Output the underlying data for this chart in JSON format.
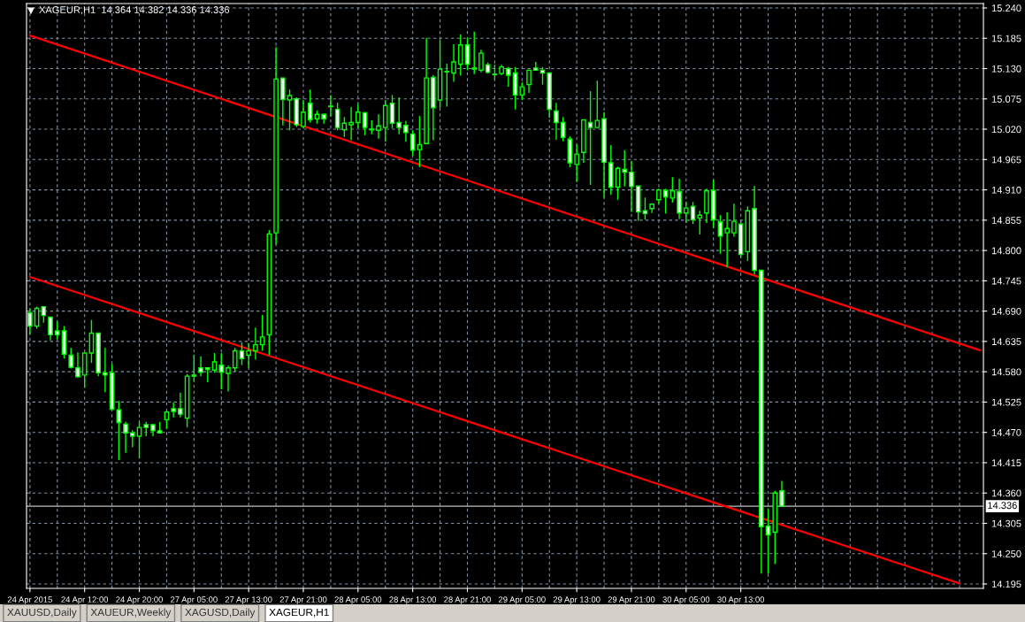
{
  "chart_data": {
    "type": "candlestick",
    "title": "XAGEUR,H1  14.364 14.382 14.336 14.336",
    "categories": [
      "24 Apr 2015",
      null,
      null,
      null,
      null,
      null,
      null,
      null,
      "24 Apr 12:00",
      null,
      null,
      null,
      null,
      null,
      null,
      null,
      "24 Apr 20:00",
      null,
      null,
      null,
      null,
      null,
      null,
      null,
      "27 Apr 05:00",
      null,
      null,
      null,
      null,
      null,
      null,
      null,
      "27 Apr 13:00",
      null,
      null,
      null,
      null,
      null,
      null,
      null,
      "27 Apr 21:00",
      null,
      null,
      null,
      null,
      null,
      null,
      null,
      "28 Apr 05:00",
      null,
      null,
      null,
      null,
      null,
      null,
      null,
      "28 Apr 13:00",
      null,
      null,
      null,
      null,
      null,
      null,
      null,
      "28 Apr 21:00",
      null,
      null,
      null,
      null,
      null,
      null,
      null,
      "29 Apr 05:00",
      null,
      null,
      null,
      null,
      null,
      null,
      null,
      "29 Apr 13:00",
      null,
      null,
      null,
      null,
      null,
      null,
      null,
      "29 Apr 21:00",
      null,
      null,
      null,
      null,
      null,
      null,
      null,
      "30 Apr 05:00",
      null,
      null,
      null,
      null,
      null,
      null,
      null,
      "30 Apr 13:00",
      null,
      null,
      null,
      null,
      null,
      null,
      null,
      null,
      null,
      null,
      null,
      null,
      null,
      null,
      null,
      null,
      null,
      null,
      null,
      null,
      null,
      null,
      null,
      null,
      null,
      null,
      null,
      null,
      null,
      null,
      null,
      null,
      null,
      null,
      null
    ],
    "ohlc": [
      [
        14.687,
        14.695,
        14.647,
        14.663
      ],
      [
        14.663,
        14.698,
        14.658,
        14.695
      ],
      [
        14.698,
        14.699,
        14.669,
        14.682
      ],
      [
        14.679,
        14.68,
        14.637,
        14.647
      ],
      [
        14.654,
        14.671,
        14.639,
        14.647
      ],
      [
        14.654,
        14.663,
        14.604,
        14.612
      ],
      [
        14.61,
        14.623,
        14.586,
        14.588
      ],
      [
        14.587,
        14.615,
        14.569,
        14.571
      ],
      [
        14.574,
        14.614,
        14.551,
        14.614
      ],
      [
        14.614,
        14.674,
        14.596,
        14.65
      ],
      [
        14.65,
        14.65,
        14.572,
        14.578
      ],
      [
        14.578,
        14.623,
        14.543,
        14.574
      ],
      [
        14.578,
        14.594,
        14.512,
        14.512
      ],
      [
        14.511,
        14.527,
        14.42,
        14.488
      ],
      [
        14.485,
        14.489,
        14.433,
        14.469
      ],
      [
        14.469,
        14.474,
        14.443,
        14.463
      ],
      [
        14.463,
        14.489,
        14.423,
        14.479
      ],
      [
        14.484,
        14.489,
        14.463,
        14.479
      ],
      [
        14.484,
        14.485,
        14.463,
        14.473
      ],
      [
        14.473,
        14.489,
        14.469,
        14.469
      ],
      [
        14.493,
        14.509,
        14.476,
        14.507
      ],
      [
        14.513,
        14.524,
        14.497,
        14.508
      ],
      [
        14.513,
        14.542,
        14.497,
        14.503
      ],
      [
        14.496,
        14.576,
        14.479,
        14.572
      ],
      [
        14.574,
        14.611,
        14.562,
        14.572
      ],
      [
        14.587,
        14.608,
        14.572,
        14.579
      ],
      [
        14.587,
        14.588,
        14.561,
        14.584
      ],
      [
        14.583,
        14.614,
        14.578,
        14.598
      ],
      [
        14.592,
        14.614,
        14.548,
        14.579
      ],
      [
        14.577,
        14.591,
        14.544,
        14.587
      ],
      [
        14.587,
        14.623,
        14.58,
        14.618
      ],
      [
        14.618,
        14.633,
        14.592,
        14.604
      ],
      [
        14.61,
        14.632,
        14.587,
        14.618
      ],
      [
        14.618,
        14.66,
        14.602,
        14.629
      ],
      [
        14.629,
        14.683,
        14.618,
        14.643
      ],
      [
        14.647,
        14.837,
        14.61,
        14.83
      ],
      [
        14.832,
        15.169,
        14.811,
        15.111
      ],
      [
        15.113,
        15.113,
        15.027,
        15.074
      ],
      [
        15.073,
        15.092,
        15.018,
        15.081
      ],
      [
        15.075,
        15.078,
        15.024,
        15.028
      ],
      [
        15.025,
        15.073,
        15.022,
        15.051
      ],
      [
        15.067,
        15.092,
        15.032,
        15.037
      ],
      [
        15.039,
        15.054,
        15.03,
        15.047
      ],
      [
        15.047,
        15.048,
        15.03,
        15.039
      ],
      [
        15.062,
        15.082,
        15.043,
        15.061
      ],
      [
        15.056,
        15.068,
        15.018,
        15.023
      ],
      [
        15.019,
        15.042,
        15.006,
        15.031
      ],
      [
        15.028,
        15.06,
        15.0,
        15.032
      ],
      [
        15.032,
        15.066,
        15.022,
        15.051
      ],
      [
        15.05,
        15.051,
        15.009,
        15.023
      ],
      [
        15.02,
        15.036,
        15.011,
        15.019
      ],
      [
        15.018,
        15.047,
        15.003,
        15.026
      ],
      [
        15.023,
        15.073,
        14.997,
        15.063
      ],
      [
        15.067,
        15.082,
        15.022,
        15.031
      ],
      [
        15.032,
        15.078,
        15.011,
        15.023
      ],
      [
        15.027,
        15.035,
        14.997,
        15.014
      ],
      [
        15.011,
        15.018,
        14.972,
        14.982
      ],
      [
        14.983,
        15.044,
        14.951,
        14.992
      ],
      [
        14.994,
        15.186,
        14.994,
        15.113
      ],
      [
        15.114,
        15.118,
        15.0,
        15.059
      ],
      [
        15.073,
        15.182,
        15.059,
        15.129
      ],
      [
        15.125,
        15.139,
        15.061,
        15.124
      ],
      [
        15.122,
        15.174,
        15.106,
        15.142
      ],
      [
        15.138,
        15.192,
        15.117,
        15.173
      ],
      [
        15.173,
        15.186,
        15.127,
        15.138
      ],
      [
        15.131,
        15.197,
        15.12,
        15.129
      ],
      [
        15.127,
        15.164,
        15.123,
        15.158
      ],
      [
        15.137,
        15.141,
        15.121,
        15.123
      ],
      [
        15.12,
        15.137,
        15.11,
        15.119
      ],
      [
        15.121,
        15.137,
        15.118,
        15.133
      ],
      [
        15.13,
        15.133,
        15.097,
        15.118
      ],
      [
        15.122,
        15.133,
        15.056,
        15.082
      ],
      [
        15.082,
        15.105,
        15.073,
        15.097
      ],
      [
        15.101,
        15.127,
        15.086,
        15.127
      ],
      [
        15.131,
        15.142,
        15.126,
        15.127
      ],
      [
        15.127,
        15.133,
        15.101,
        15.122
      ],
      [
        15.122,
        15.123,
        15.041,
        15.056
      ],
      [
        15.053,
        15.068,
        15.001,
        15.032
      ],
      [
        15.032,
        15.042,
        14.998,
        15.005
      ],
      [
        15.002,
        15.007,
        14.951,
        14.959
      ],
      [
        14.956,
        14.992,
        14.924,
        14.975
      ],
      [
        14.978,
        15.037,
        14.959,
        15.037
      ],
      [
        15.032,
        15.089,
        14.919,
        15.023
      ],
      [
        15.023,
        15.108,
        15.022,
        15.036
      ],
      [
        15.039,
        15.051,
        14.896,
        14.96
      ],
      [
        14.959,
        14.991,
        14.901,
        14.915
      ],
      [
        14.915,
        14.952,
        14.892,
        14.949
      ],
      [
        14.947,
        14.982,
        14.916,
        14.942
      ],
      [
        14.942,
        14.962,
        14.87,
        14.916
      ],
      [
        14.917,
        14.917,
        14.854,
        14.87
      ],
      [
        14.872,
        14.896,
        14.856,
        14.867
      ],
      [
        14.876,
        14.884,
        14.868,
        14.884
      ],
      [
        14.892,
        14.912,
        14.885,
        14.91
      ],
      [
        14.909,
        14.912,
        14.867,
        14.897
      ],
      [
        14.895,
        14.933,
        14.887,
        14.908
      ],
      [
        14.907,
        14.93,
        14.857,
        14.868
      ],
      [
        14.868,
        14.888,
        14.85,
        14.877
      ],
      [
        14.88,
        14.888,
        14.848,
        14.856
      ],
      [
        14.859,
        14.872,
        14.829,
        14.864
      ],
      [
        14.868,
        14.912,
        14.85,
        14.908
      ],
      [
        14.909,
        14.928,
        14.841,
        14.856
      ],
      [
        14.852,
        14.864,
        14.794,
        14.826
      ],
      [
        14.832,
        14.869,
        14.77,
        14.84
      ],
      [
        14.832,
        14.885,
        14.825,
        14.853
      ],
      [
        14.848,
        14.853,
        14.786,
        14.793
      ],
      [
        14.798,
        14.88,
        14.781,
        14.872
      ],
      [
        14.876,
        14.917,
        14.757,
        14.764
      ],
      [
        14.764,
        14.765,
        14.214,
        14.299
      ],
      [
        14.3,
        14.332,
        14.214,
        14.284
      ],
      [
        14.289,
        14.364,
        14.231,
        14.36
      ],
      [
        14.364,
        14.382,
        14.336,
        14.336
      ],
      null,
      null,
      null,
      null,
      null,
      null,
      null,
      null,
      null,
      null,
      null,
      null,
      null,
      null,
      null,
      null,
      null,
      null,
      null,
      null,
      null,
      null,
      null,
      null,
      null,
      null,
      null,
      null,
      null
    ],
    "series": [
      {
        "type": "line",
        "color": "#ff0000",
        "values": [
          15.19,
          null,
          null,
          null,
          null,
          null,
          null,
          null,
          null,
          null,
          null,
          null,
          null,
          null,
          null,
          null,
          null,
          null,
          null,
          null,
          null,
          null,
          null,
          null,
          null,
          null,
          null,
          null,
          null,
          null,
          null,
          null,
          null,
          null,
          null,
          null,
          null,
          null,
          null,
          null,
          null,
          null,
          null,
          null,
          null,
          null,
          null,
          null,
          null,
          null,
          null,
          null,
          null,
          null,
          null,
          null,
          null,
          null,
          null,
          null,
          null,
          null,
          null,
          null,
          null,
          null,
          null,
          null,
          null,
          null,
          null,
          null,
          null,
          null,
          null,
          null,
          null,
          null,
          null,
          null,
          null,
          null,
          null,
          null,
          null,
          null,
          null,
          null,
          null,
          null,
          null,
          null,
          null,
          null,
          null,
          null,
          null,
          null,
          null,
          null,
          null,
          null,
          null,
          null,
          null,
          null,
          null,
          null,
          null,
          null,
          null,
          null,
          null,
          null,
          null,
          null,
          null,
          null,
          null,
          null,
          null,
          null,
          null,
          null,
          null,
          null,
          null,
          null,
          null,
          null,
          null,
          null,
          null,
          null,
          null,
          null,
          null,
          null,
          null,
          14.619
        ]
      },
      {
        "type": "line",
        "color": "#ff0000",
        "values": [
          14.752,
          null,
          null,
          null,
          null,
          null,
          null,
          null,
          null,
          null,
          null,
          null,
          null,
          null,
          null,
          null,
          null,
          null,
          null,
          null,
          null,
          null,
          null,
          null,
          null,
          null,
          null,
          null,
          null,
          null,
          null,
          null,
          null,
          null,
          null,
          null,
          null,
          null,
          null,
          null,
          null,
          null,
          null,
          null,
          null,
          null,
          null,
          null,
          null,
          null,
          null,
          null,
          null,
          null,
          null,
          null,
          null,
          null,
          null,
          null,
          null,
          null,
          null,
          null,
          null,
          null,
          null,
          null,
          null,
          null,
          null,
          null,
          null,
          null,
          null,
          null,
          null,
          null,
          null,
          null,
          null,
          null,
          null,
          null,
          null,
          null,
          null,
          null,
          null,
          null,
          null,
          null,
          null,
          null,
          null,
          null,
          null,
          null,
          null,
          null,
          null,
          null,
          null,
          null,
          null,
          null,
          null,
          null,
          null,
          null,
          null,
          null,
          null,
          null,
          null,
          null,
          null,
          null,
          null,
          null,
          null,
          null,
          null,
          null,
          null,
          null,
          null,
          null,
          null,
          null,
          null,
          null,
          null,
          null,
          null,
          null,
          14.196,
          null,
          null,
          null
        ]
      }
    ],
    "ylim": [
      14.187,
      15.248
    ],
    "yticks": [
      {
        "value": 14.195,
        "label": "14.195"
      },
      {
        "value": 14.25,
        "label": "14.250"
      },
      {
        "value": 14.305,
        "label": "14.305"
      },
      {
        "value": 14.36,
        "label": "14.360"
      },
      {
        "value": 14.415,
        "label": "14.415"
      },
      {
        "value": 14.47,
        "label": "14.470"
      },
      {
        "value": 14.525,
        "label": "14.525"
      },
      {
        "value": 14.58,
        "label": "14.580"
      },
      {
        "value": 14.635,
        "label": "14.635"
      },
      {
        "value": 14.69,
        "label": "14.690"
      },
      {
        "value": 14.745,
        "label": "14.745"
      },
      {
        "value": 14.8,
        "label": "14.800"
      },
      {
        "value": 14.855,
        "label": "14.855"
      },
      {
        "value": 14.91,
        "label": "14.910"
      },
      {
        "value": 14.965,
        "label": "14.965"
      },
      {
        "value": 15.02,
        "label": "15.020"
      },
      {
        "value": 15.075,
        "label": "15.075"
      },
      {
        "value": 15.13,
        "label": "15.130"
      },
      {
        "value": 15.185,
        "label": "15.185"
      },
      {
        "value": 15.24,
        "label": "15.240"
      }
    ],
    "grid": true,
    "ref_lines": [
      {
        "axis": "y",
        "value": 14.336,
        "label": "14.336",
        "color": "#c0c0c0"
      }
    ],
    "annotations": [
      "XAUUSD,Daily",
      "XAUEUR,Weekly",
      "XAGUSD,Daily",
      "XAGEUR,H1"
    ]
  }
}
